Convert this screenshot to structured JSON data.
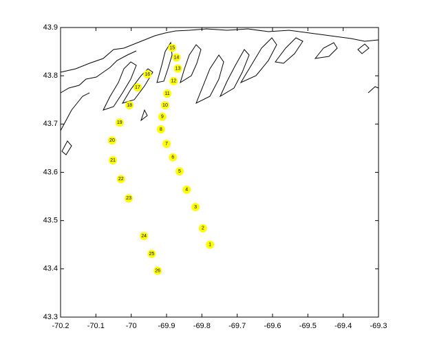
{
  "chart_data": {
    "type": "scatter",
    "x": [
      -69.777,
      -69.797,
      -69.818,
      -69.843,
      -69.863,
      -69.882,
      -69.9,
      -69.916,
      -69.912,
      -69.904,
      -69.898,
      -69.88,
      -69.868,
      -69.872,
      -69.884,
      -69.954,
      -69.982,
      -70.005,
      -70.033,
      -70.054,
      -70.052,
      -70.029,
      -70.007,
      -69.964,
      -69.942,
      -69.925
    ],
    "values": [
      43.45,
      43.484,
      43.528,
      43.564,
      43.602,
      43.631,
      43.659,
      43.689,
      43.715,
      43.739,
      43.763,
      43.789,
      43.815,
      43.838,
      43.858,
      43.803,
      43.776,
      43.739,
      43.703,
      43.666,
      43.625,
      43.586,
      43.546,
      43.468,
      43.431,
      43.396
    ],
    "point_labels": [
      "1",
      "2",
      "3",
      "4",
      "5",
      "6",
      "7",
      "8",
      "9",
      "10",
      "11",
      "12",
      "13",
      "14",
      "15",
      "16",
      "17",
      "18",
      "19",
      "20",
      "21",
      "22",
      "23",
      "24",
      "25",
      "26"
    ],
    "color": "#ffff00",
    "xlim": [
      -70.2,
      -69.3
    ],
    "xticks": [
      -70.2,
      -70.1,
      -70,
      -69.9,
      -69.8,
      -69.7,
      -69.6,
      -69.5,
      -69.4,
      -69.3
    ],
    "ylim": [
      43.3,
      43.9
    ],
    "yticks": [
      43.3,
      43.4,
      43.5,
      43.6,
      43.7,
      43.8,
      43.9
    ]
  }
}
